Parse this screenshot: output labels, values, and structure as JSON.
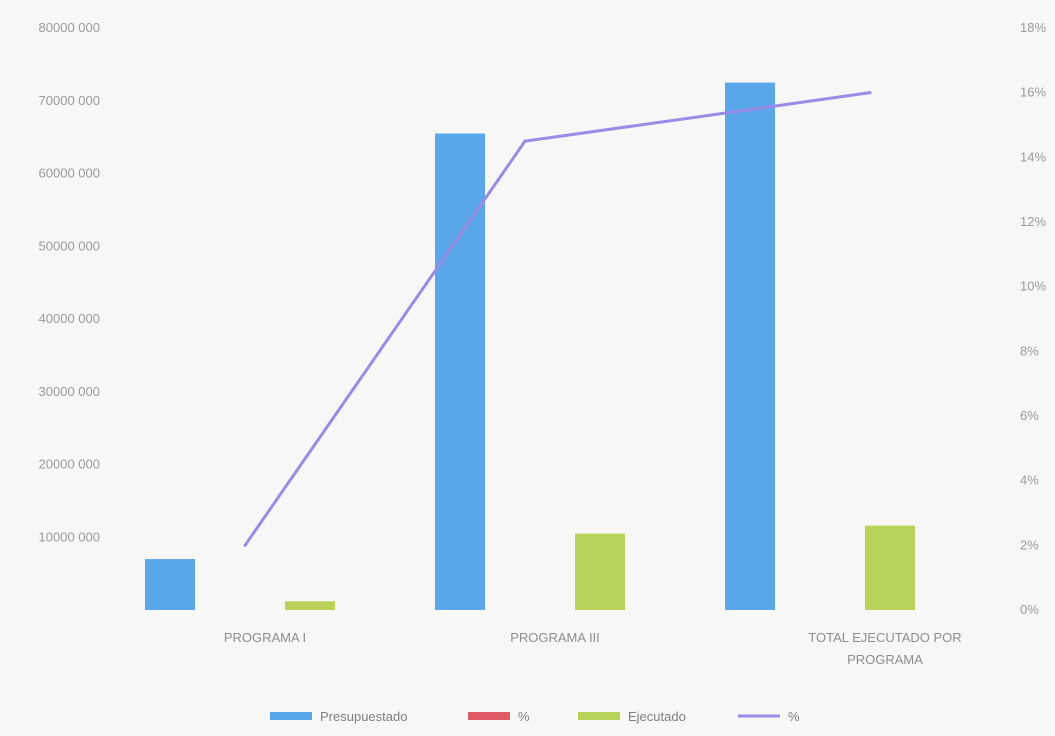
{
  "chart_data": {
    "type": "bar",
    "categories": [
      [
        "PROGRAMA I"
      ],
      [
        "PROGRAMA III"
      ],
      [
        "TOTAL EJECUTADO POR",
        "PROGRAMA"
      ]
    ],
    "series": [
      {
        "name": "Presupuestado",
        "kind": "bar",
        "axis": "left",
        "color": "#5aa7ea",
        "values": [
          7000000,
          65500000,
          72500000
        ]
      },
      {
        "name": "%",
        "kind": "bar",
        "axis": "left",
        "color": "#e05a66",
        "values": [
          0,
          0,
          0
        ]
      },
      {
        "name": "Ejecutado",
        "kind": "bar",
        "axis": "left",
        "color": "#b8d35a",
        "values": [
          1200000,
          10500000,
          11600000
        ]
      },
      {
        "name": "%",
        "kind": "line",
        "axis": "right",
        "color": "#9a8be6",
        "values": [
          2.0,
          14.5,
          16.0
        ]
      }
    ],
    "y_left": {
      "ylim": [
        0,
        80000000
      ],
      "ticks": [
        0,
        10000000,
        20000000,
        30000000,
        40000000,
        50000000,
        60000000,
        70000000,
        80000000
      ],
      "tick_labels": [
        "",
        "10000 000",
        "20000 000",
        "30000 000",
        "40000 000",
        "50000 000",
        "60000 000",
        "70000 000",
        "80000 000"
      ]
    },
    "y_right": {
      "ylim": [
        0,
        18
      ],
      "ticks": [
        0,
        2,
        4,
        6,
        8,
        10,
        12,
        14,
        16,
        18
      ],
      "tick_labels": [
        "0%",
        "2%",
        "4%",
        "6%",
        "8%",
        "10%",
        "12%",
        "14%",
        "16%",
        "18%"
      ]
    },
    "grid": false,
    "legend": {
      "position": "bottom",
      "entries": [
        "Presupuestado",
        "%",
        "Ejecutado",
        "%"
      ]
    },
    "title": "",
    "xlabel": "",
    "ylabel": ""
  }
}
